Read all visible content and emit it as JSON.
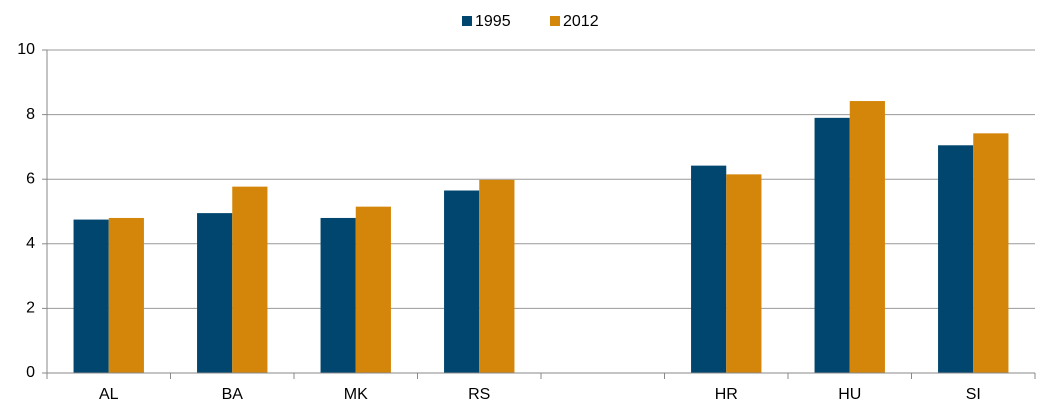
{
  "chart_data": {
    "type": "bar",
    "categories": [
      "AL",
      "BA",
      "MK",
      "RS",
      null,
      "HR",
      "HU",
      "SI"
    ],
    "series": [
      {
        "name": "1995",
        "color": "#00466e",
        "values": [
          4.75,
          4.95,
          4.8,
          5.65,
          null,
          6.42,
          7.9,
          7.05
        ]
      },
      {
        "name": "2012",
        "color": "#d4860b",
        "values": [
          4.8,
          5.77,
          5.15,
          5.98,
          null,
          6.15,
          8.42,
          7.42
        ]
      }
    ],
    "ylim": [
      0,
      10
    ],
    "yticks": [
      0,
      2,
      4,
      6,
      8,
      10
    ],
    "grid": true,
    "legend": "top"
  }
}
